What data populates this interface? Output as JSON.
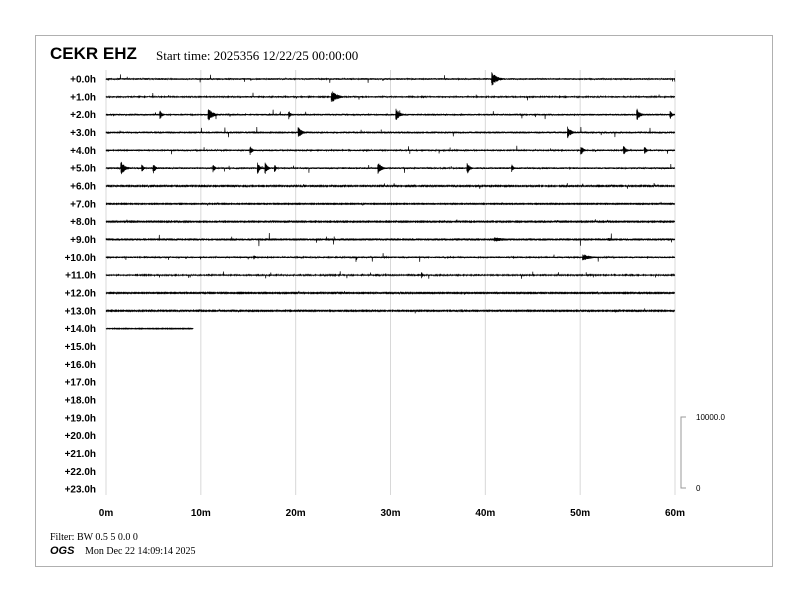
{
  "header": {
    "station": "CEKR EHZ",
    "start_time": "Start time: 2025356 12/22/25 00:00:00"
  },
  "footer": {
    "filter": "Filter: BW 0.5 5 0.0 0",
    "agency": "OGS",
    "generated": "Mon Dec 22 14:09:14 2025"
  },
  "chart_data": {
    "type": "line",
    "subtype": "helicorder",
    "row_labels": [
      "+0.0h",
      "+1.0h",
      "+2.0h",
      "+3.0h",
      "+4.0h",
      "+5.0h",
      "+6.0h",
      "+7.0h",
      "+8.0h",
      "+9.0h",
      "+10.0h",
      "+11.0h",
      "+12.0h",
      "+13.0h",
      "+14.0h",
      "+15.0h",
      "+16.0h",
      "+17.0h",
      "+18.0h",
      "+19.0h",
      "+20.0h",
      "+21.0h",
      "+22.0h",
      "+23.0h"
    ],
    "x_ticks": [
      "0m",
      "10m",
      "20m",
      "30m",
      "40m",
      "50m",
      "60m"
    ],
    "xlim_minutes": [
      0,
      60
    ],
    "grid": "vertical every 10m",
    "scale_bar": {
      "top_label": "10000.0",
      "bottom_label": "0",
      "top_value": 10000,
      "bottom_value": 0
    },
    "trace_color": "#000000",
    "data_end": {
      "row": 14,
      "minute": 9.2
    },
    "noise_amplitude_counts": [
      120,
      100,
      120,
      130,
      110,
      120,
      70,
      50,
      60,
      160,
      110,
      90,
      60,
      60,
      40
    ],
    "events": [
      {
        "row": 0,
        "minute": 40.7,
        "amp": 1000,
        "dur": 1.2
      },
      {
        "row": 1,
        "minute": 23.8,
        "amp": 900,
        "dur": 1.3
      },
      {
        "row": 2,
        "minute": 5.7,
        "amp": 750,
        "dur": 0.5
      },
      {
        "row": 2,
        "minute": 10.8,
        "amp": 900,
        "dur": 1.1
      },
      {
        "row": 2,
        "minute": 19.3,
        "amp": 650,
        "dur": 0.4
      },
      {
        "row": 2,
        "minute": 30.6,
        "amp": 850,
        "dur": 0.9
      },
      {
        "row": 2,
        "minute": 56.0,
        "amp": 850,
        "dur": 0.8
      },
      {
        "row": 2,
        "minute": 59.5,
        "amp": 650,
        "dur": 0.4
      },
      {
        "row": 3,
        "minute": 20.3,
        "amp": 800,
        "dur": 0.8
      },
      {
        "row": 3,
        "minute": 48.7,
        "amp": 850,
        "dur": 0.8
      },
      {
        "row": 4,
        "minute": 15.2,
        "amp": 700,
        "dur": 0.5
      },
      {
        "row": 4,
        "minute": 50.1,
        "amp": 700,
        "dur": 0.6
      },
      {
        "row": 4,
        "minute": 54.6,
        "amp": 700,
        "dur": 0.6
      },
      {
        "row": 4,
        "minute": 56.8,
        "amp": 600,
        "dur": 0.5
      },
      {
        "row": 5,
        "minute": 1.6,
        "amp": 1000,
        "dur": 0.9
      },
      {
        "row": 5,
        "minute": 3.8,
        "amp": 600,
        "dur": 0.4
      },
      {
        "row": 5,
        "minute": 5.0,
        "amp": 750,
        "dur": 0.5
      },
      {
        "row": 5,
        "minute": 11.3,
        "amp": 650,
        "dur": 0.4
      },
      {
        "row": 5,
        "minute": 16.0,
        "amp": 800,
        "dur": 0.5
      },
      {
        "row": 5,
        "minute": 16.8,
        "amp": 800,
        "dur": 0.6
      },
      {
        "row": 5,
        "minute": 17.8,
        "amp": 600,
        "dur": 0.3
      },
      {
        "row": 5,
        "minute": 28.7,
        "amp": 850,
        "dur": 0.8
      },
      {
        "row": 5,
        "minute": 38.1,
        "amp": 850,
        "dur": 0.6
      },
      {
        "row": 5,
        "minute": 42.8,
        "amp": 550,
        "dur": 0.4
      },
      {
        "row": 9,
        "minute": 41.0,
        "amp": 350,
        "dur": 2.5
      },
      {
        "row": 9,
        "minute": 53.0,
        "amp": 220,
        "dur": 2.0
      },
      {
        "row": 10,
        "minute": 15.6,
        "amp": 300,
        "dur": 0.6
      },
      {
        "row": 10,
        "minute": 50.3,
        "amp": 450,
        "dur": 2.0
      },
      {
        "row": 11,
        "minute": 33.3,
        "amp": 450,
        "dur": 0.3
      }
    ]
  }
}
